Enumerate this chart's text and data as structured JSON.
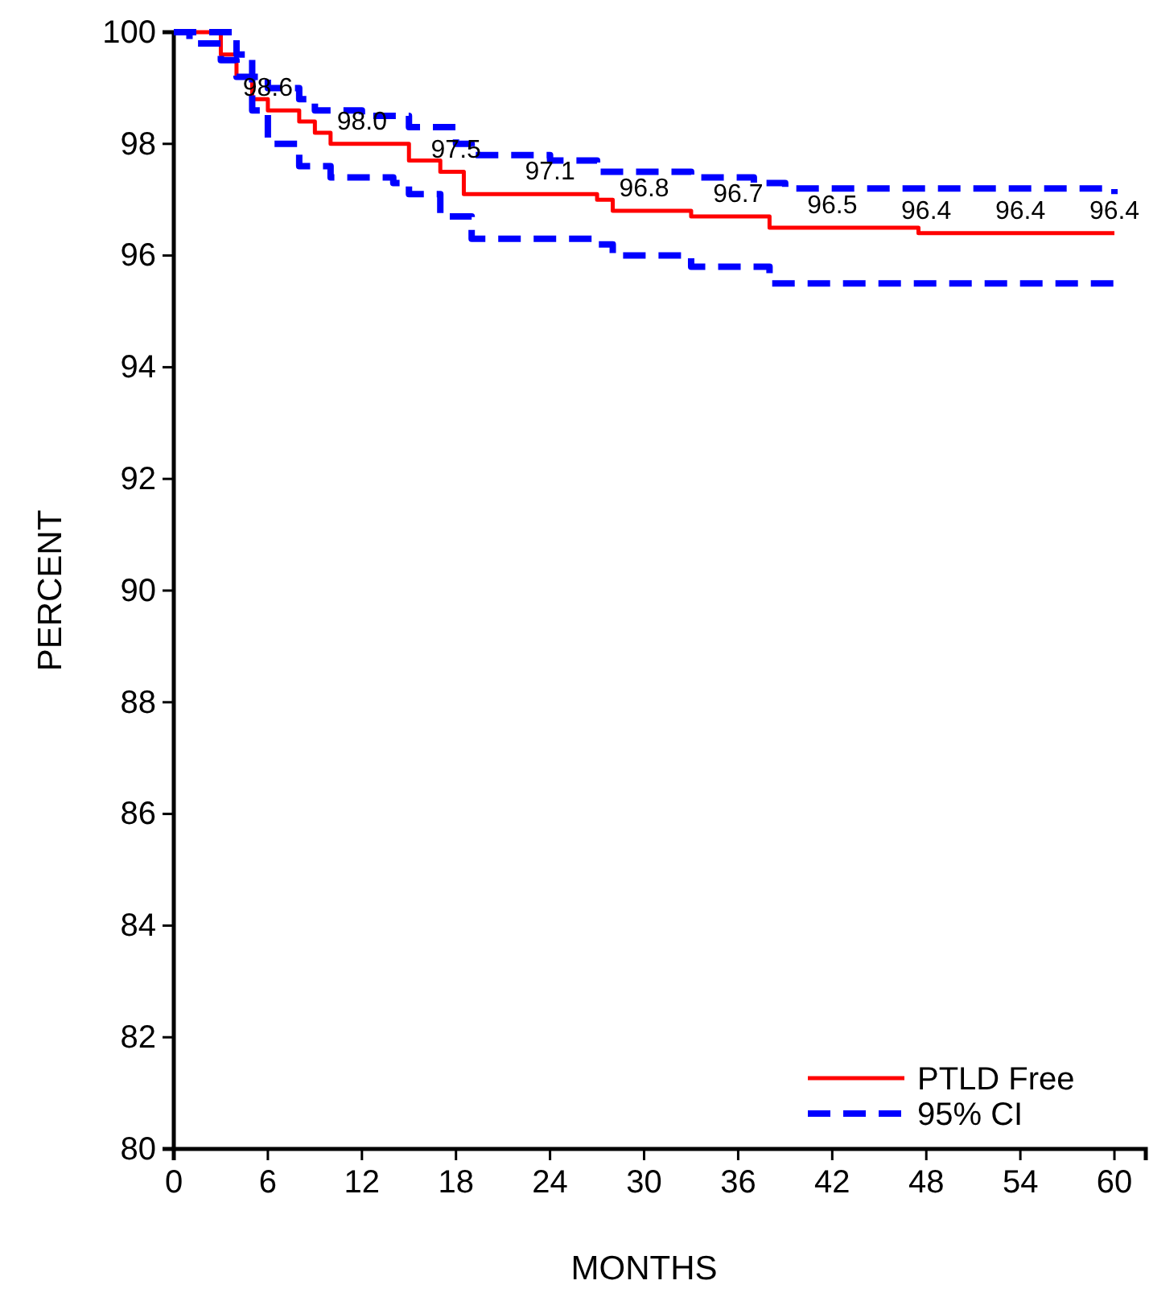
{
  "chart_data": {
    "type": "step",
    "xlabel": "MONTHS",
    "ylabel": "PERCENT",
    "xlim": [
      0,
      62
    ],
    "ylim": [
      80,
      100
    ],
    "xticks": [
      0,
      6,
      12,
      18,
      24,
      30,
      36,
      42,
      48,
      54,
      60
    ],
    "yticks": [
      80,
      82,
      84,
      86,
      88,
      90,
      92,
      94,
      96,
      98,
      100
    ],
    "grid": false,
    "legend": "bottom right",
    "marker": "none",
    "series": [
      {
        "name": "PTLD Free",
        "color": "#ff0000",
        "line_style": "solid",
        "x": [
          0,
          2,
          3,
          4,
          5,
          6,
          8,
          9,
          10,
          14,
          15,
          17,
          18.5,
          27,
          28,
          33,
          38,
          47.5,
          60
        ],
        "values": [
          100,
          100,
          99.6,
          99.2,
          98.8,
          98.6,
          98.4,
          98.2,
          98.0,
          98.0,
          97.7,
          97.5,
          97.1,
          97.0,
          96.8,
          96.7,
          96.5,
          96.4,
          96.4
        ]
      },
      {
        "name": "95% CI",
        "color": "#0000ff",
        "line_style": "dashed",
        "x": [
          0,
          3,
          4,
          5,
          6,
          8,
          9,
          12,
          15,
          18,
          19,
          24,
          27,
          33,
          37,
          39,
          60
        ],
        "values": [
          100,
          100,
          99.6,
          99.2,
          99.0,
          98.8,
          98.6,
          98.5,
          98.3,
          98.0,
          97.8,
          97.7,
          97.5,
          97.4,
          97.3,
          97.2,
          97.1
        ]
      },
      {
        "color": "#0000ff",
        "line_style": "dashed",
        "x": [
          0,
          1,
          3,
          4,
          5,
          6,
          8,
          10,
          14,
          15,
          17,
          19,
          27,
          28,
          33,
          38,
          60
        ],
        "values": [
          100,
          99.8,
          99.5,
          99.2,
          98.6,
          98.0,
          97.6,
          97.4,
          97.3,
          97.1,
          96.7,
          96.3,
          96.2,
          96.0,
          95.8,
          95.5,
          95.45
        ]
      }
    ],
    "annotations": [
      {
        "text": "98.6",
        "x": 6,
        "y": 98.6
      },
      {
        "text": "98.0",
        "x": 12,
        "y": 98.0
      },
      {
        "text": "97.5",
        "x": 18,
        "y": 97.5
      },
      {
        "text": "97.1",
        "x": 24,
        "y": 97.1
      },
      {
        "text": "96.8",
        "x": 30,
        "y": 96.8
      },
      {
        "text": "96.7",
        "x": 36,
        "y": 96.7
      },
      {
        "text": "96.5",
        "x": 42,
        "y": 96.5
      },
      {
        "text": "96.4",
        "x": 48,
        "y": 96.4
      },
      {
        "text": "96.4",
        "x": 54,
        "y": 96.4
      },
      {
        "text": "96.4",
        "x": 60,
        "y": 96.4
      }
    ]
  }
}
